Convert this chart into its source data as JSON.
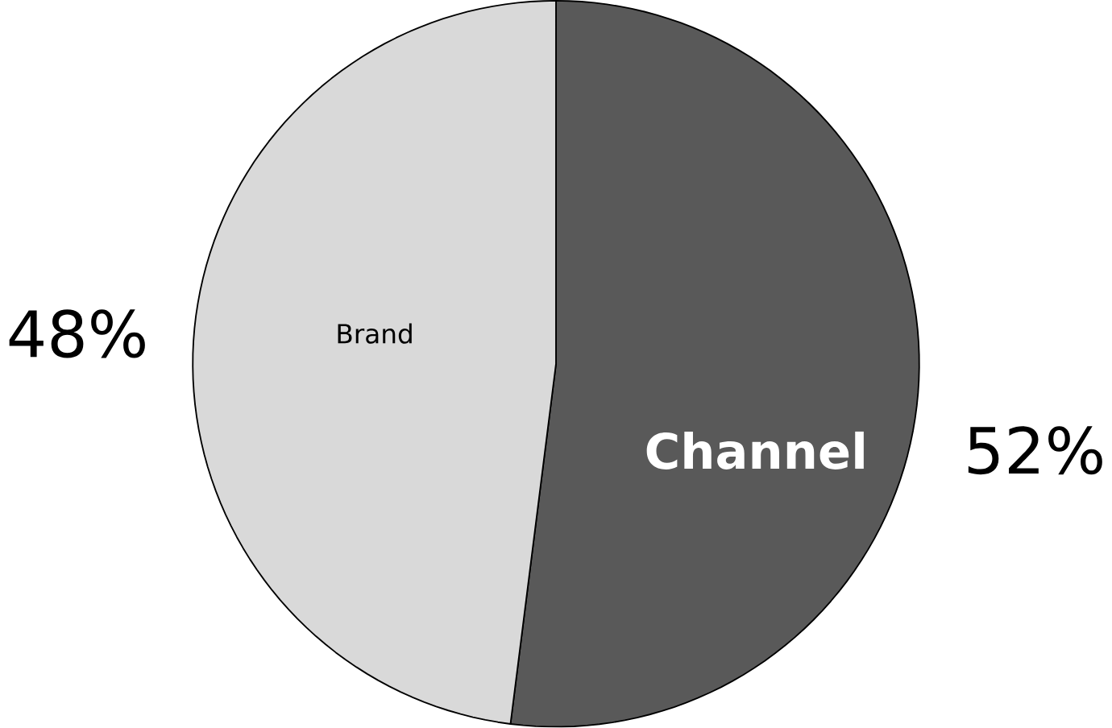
{
  "chart_data": {
    "type": "pie",
    "categories": [
      "Channel",
      "Brand"
    ],
    "values": [
      52,
      48
    ],
    "colors": [
      "#595959",
      "#d9d9d9"
    ],
    "value_labels": [
      "52%",
      "48%"
    ]
  }
}
